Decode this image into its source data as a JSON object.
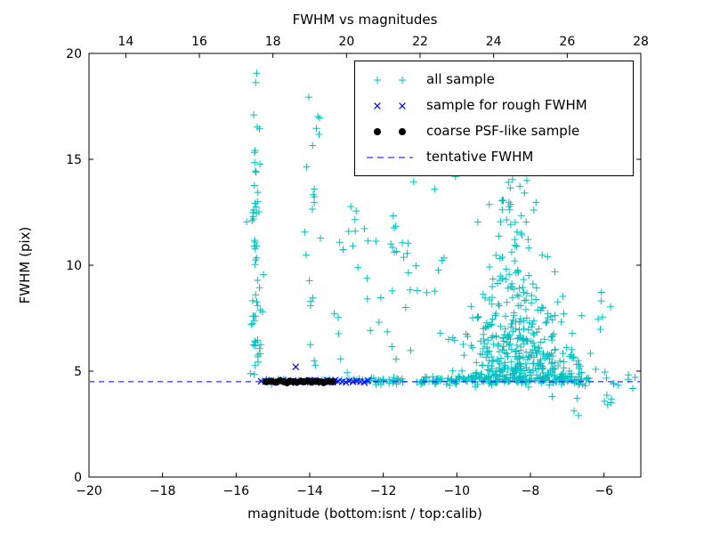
{
  "chart_data": {
    "type": "scatter",
    "title": "FWHM vs magnitudes",
    "xlabel": "magnitude (bottom:isnt / top:calib)",
    "ylabel": "FWHM (pix)",
    "xlim": [
      -20,
      -5
    ],
    "ylim": [
      0,
      20
    ],
    "top_axis_offset": 33,
    "grid": false,
    "colors": {
      "all_sample": "#00bfbf",
      "rough_fwhm": "#0000ff",
      "psf_like": "#000000",
      "tentative_line": "#0000ff",
      "axes": "#000000"
    },
    "x_ticks_bottom": {
      "values": [
        -20,
        -18,
        -16,
        -14,
        -12,
        -10,
        -8,
        -6
      ],
      "labels": [
        "−20",
        "−18",
        "−16",
        "−14",
        "−12",
        "−10",
        "−8",
        "−6"
      ]
    },
    "x_ticks_top": {
      "values": [
        14,
        16,
        18,
        20,
        22,
        24,
        26,
        28
      ],
      "labels": [
        "14",
        "16",
        "18",
        "20",
        "22",
        "24",
        "26",
        "28"
      ]
    },
    "y_ticks": {
      "values": [
        0,
        5,
        10,
        15,
        20
      ],
      "labels": [
        "0",
        "5",
        "10",
        "15",
        "20"
      ]
    },
    "tentative_fwhm": 4.5,
    "legend": {
      "position": "upper right",
      "entries": [
        {
          "label": "all sample",
          "marker": "plus",
          "color": "#00bfbf"
        },
        {
          "label": "sample for rough FWHM",
          "marker": "x",
          "color": "#0000ff"
        },
        {
          "label": "coarse PSF-like sample",
          "marker": "circle",
          "color": "#000000"
        },
        {
          "label": "tentative FWHM",
          "marker": "dashed-line",
          "color": "#0000ff"
        }
      ]
    },
    "series": {
      "all_sample": {
        "marker": "plus",
        "color": "#00bfbf",
        "note": "dense detection cloud (~850 pts) approximated by generator clusters; x in isnt magnitude, y in FWHM pix",
        "seed": 42,
        "clusters": [
          {
            "type": "column",
            "x_mean": -15.45,
            "x_sd": 0.08,
            "y_min": 4.6,
            "y_max": 13.5,
            "n": 50
          },
          {
            "type": "column",
            "x_mean": -15.4,
            "x_sd": 0.13,
            "y_min": 13.5,
            "y_max": 19.6,
            "n": 12
          },
          {
            "type": "column",
            "x_mean": -13.95,
            "x_sd": 0.1,
            "y_min": 4.8,
            "y_max": 14.8,
            "n": 16
          },
          {
            "type": "uniform",
            "x_min": -14.2,
            "x_max": -13.3,
            "y_min": 15.0,
            "y_max": 19.4,
            "n": 6
          },
          {
            "type": "uniform",
            "x_min": -13.4,
            "x_max": -10.3,
            "y_min": 4.9,
            "y_max": 12.0,
            "n": 45
          },
          {
            "type": "uniform",
            "x_min": -13.0,
            "x_max": -10.3,
            "y_min": 12.0,
            "y_max": 16.6,
            "n": 14
          },
          {
            "type": "blob",
            "x_mean": -8.3,
            "x_sd": 0.85,
            "y_base": 4.5,
            "y_scale": 1.8,
            "y_max": 11.0,
            "n": 340
          },
          {
            "type": "column",
            "x_mean": -8.45,
            "x_sd": 0.45,
            "y_min": 8.0,
            "y_max": 15.3,
            "n": 85
          },
          {
            "type": "uniform",
            "x_min": -10.3,
            "x_max": -6.3,
            "y_min": 13.5,
            "y_max": 16.2,
            "n": 16
          },
          {
            "type": "uniform",
            "x_min": -10.2,
            "x_max": -7.2,
            "y_min": 16.5,
            "y_max": 19.5,
            "n": 6
          },
          {
            "type": "band",
            "x_min": -15.3,
            "x_max": -12.4,
            "y_mean": 4.55,
            "y_sd": 0.07,
            "n": 30
          },
          {
            "type": "band",
            "x_min": -12.4,
            "x_max": -10.2,
            "y_mean": 4.55,
            "y_sd": 0.09,
            "n": 60
          },
          {
            "type": "band",
            "x_min": -10.2,
            "x_max": -6.4,
            "y_mean": 4.6,
            "y_sd": 0.16,
            "n": 140
          },
          {
            "type": "band",
            "x_min": -6.4,
            "x_max": -5.1,
            "y_mean": 4.55,
            "y_sd": 0.3,
            "n": 10
          },
          {
            "type": "uniform",
            "x_min": -8.2,
            "x_max": -5.2,
            "y_min": 2.5,
            "y_max": 4.1,
            "n": 8
          },
          {
            "type": "uniform",
            "x_min": -6.6,
            "x_max": -5.3,
            "y_min": 6.5,
            "y_max": 9.0,
            "n": 5
          }
        ]
      },
      "rough_fwhm_sample": {
        "marker": "x",
        "color": "#0000ff",
        "points": [
          [
            -15.32,
            4.52
          ],
          [
            -15.2,
            4.5
          ],
          [
            -15.05,
            4.55
          ],
          [
            -14.92,
            4.48
          ],
          [
            -14.8,
            4.52
          ],
          [
            -14.72,
            4.58
          ],
          [
            -14.6,
            4.5
          ],
          [
            -14.52,
            4.46
          ],
          [
            -14.45,
            4.55
          ],
          [
            -14.38,
            5.2
          ],
          [
            -14.3,
            4.5
          ],
          [
            -14.22,
            4.53
          ],
          [
            -14.12,
            4.48
          ],
          [
            -14.02,
            4.55
          ],
          [
            -13.92,
            4.5
          ],
          [
            -13.85,
            4.57
          ],
          [
            -13.75,
            4.5
          ],
          [
            -13.68,
            4.46
          ],
          [
            -13.6,
            4.52
          ],
          [
            -13.52,
            4.55
          ],
          [
            -13.45,
            4.5
          ],
          [
            -13.38,
            4.48
          ],
          [
            -13.3,
            4.58
          ],
          [
            -13.22,
            4.52
          ],
          [
            -13.12,
            4.5
          ],
          [
            -13.02,
            4.47
          ],
          [
            -12.92,
            4.55
          ],
          [
            -12.82,
            4.5
          ],
          [
            -12.72,
            4.53
          ],
          [
            -12.62,
            4.5
          ],
          [
            -12.52,
            4.48
          ],
          [
            -12.42,
            4.55
          ]
        ]
      },
      "psf_like_sample": {
        "marker": "circle",
        "color": "#000000",
        "points": [
          [
            -15.18,
            4.5
          ],
          [
            -15.05,
            4.52
          ],
          [
            -14.92,
            4.48
          ],
          [
            -14.8,
            4.55
          ],
          [
            -14.7,
            4.5
          ],
          [
            -14.62,
            4.45
          ],
          [
            -14.55,
            4.52
          ],
          [
            -14.45,
            4.5
          ],
          [
            -14.35,
            4.47
          ],
          [
            -14.25,
            4.53
          ],
          [
            -14.15,
            4.5
          ],
          [
            -14.05,
            4.55
          ],
          [
            -13.95,
            4.48
          ],
          [
            -13.85,
            4.52
          ],
          [
            -13.75,
            4.5
          ],
          [
            -13.62,
            4.46
          ],
          [
            -13.5,
            4.52
          ],
          [
            -13.38,
            4.5
          ]
        ]
      }
    }
  }
}
